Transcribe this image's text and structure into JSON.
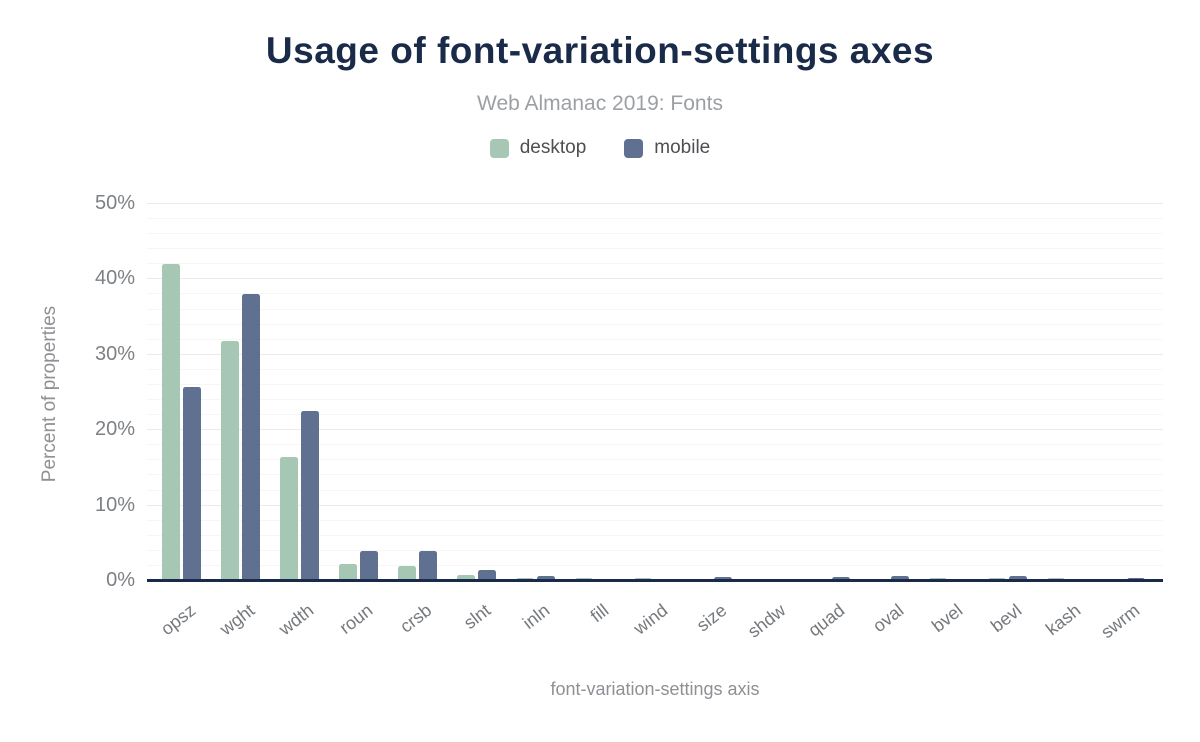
{
  "chart_data": {
    "type": "bar",
    "title": "Usage of font-variation-settings axes",
    "subtitle": "Web Almanac 2019: Fonts",
    "xlabel": "font-variation-settings axis",
    "ylabel": "Percent of properties",
    "ylim": [
      0,
      50
    ],
    "y_ticks": [
      {
        "label": "0%",
        "value": 0
      },
      {
        "label": "10%",
        "value": 10
      },
      {
        "label": "20%",
        "value": 20
      },
      {
        "label": "30%",
        "value": 30
      },
      {
        "label": "40%",
        "value": 40
      },
      {
        "label": "50%",
        "value": 50
      }
    ],
    "grid": "horizontal; faint minor lines every 2%, major lines every 10%",
    "legend_position": "top-center",
    "categories": [
      "opsz",
      "wght",
      "wdth",
      "roun",
      "crsb",
      "slnt",
      "inln",
      "fill",
      "wind",
      "size",
      "shdw",
      "quad",
      "oval",
      "bvel",
      "bevl",
      "kash",
      "swrm"
    ],
    "series": [
      {
        "name": "desktop",
        "color": "#a6c7b4",
        "values": [
          42.1,
          31.8,
          16.4,
          2.2,
          2.0,
          0.75,
          0.4,
          0.35,
          0.35,
          0.3,
          0.3,
          0.3,
          0.3,
          0.35,
          0.35,
          0.35,
          0.1
        ]
      },
      {
        "name": "mobile",
        "color": "#5f7090",
        "values": [
          25.7,
          38.1,
          22.5,
          4.0,
          4.0,
          1.4,
          0.6,
          0.05,
          0.05,
          0.55,
          0.02,
          0.55,
          0.6,
          0.05,
          0.65,
          0.02,
          0.35
        ]
      }
    ],
    "palette": {
      "title_text": "#1a2b49",
      "subtitle_text": "#9c9fa3",
      "legend_text": "#4d4f52",
      "tick_text": "#7d8085",
      "axis_title_text": "#8d9094",
      "axis_line": "#1a2b49",
      "grid_major": "#ebebed",
      "grid_minor": "#f6f6f7"
    }
  }
}
